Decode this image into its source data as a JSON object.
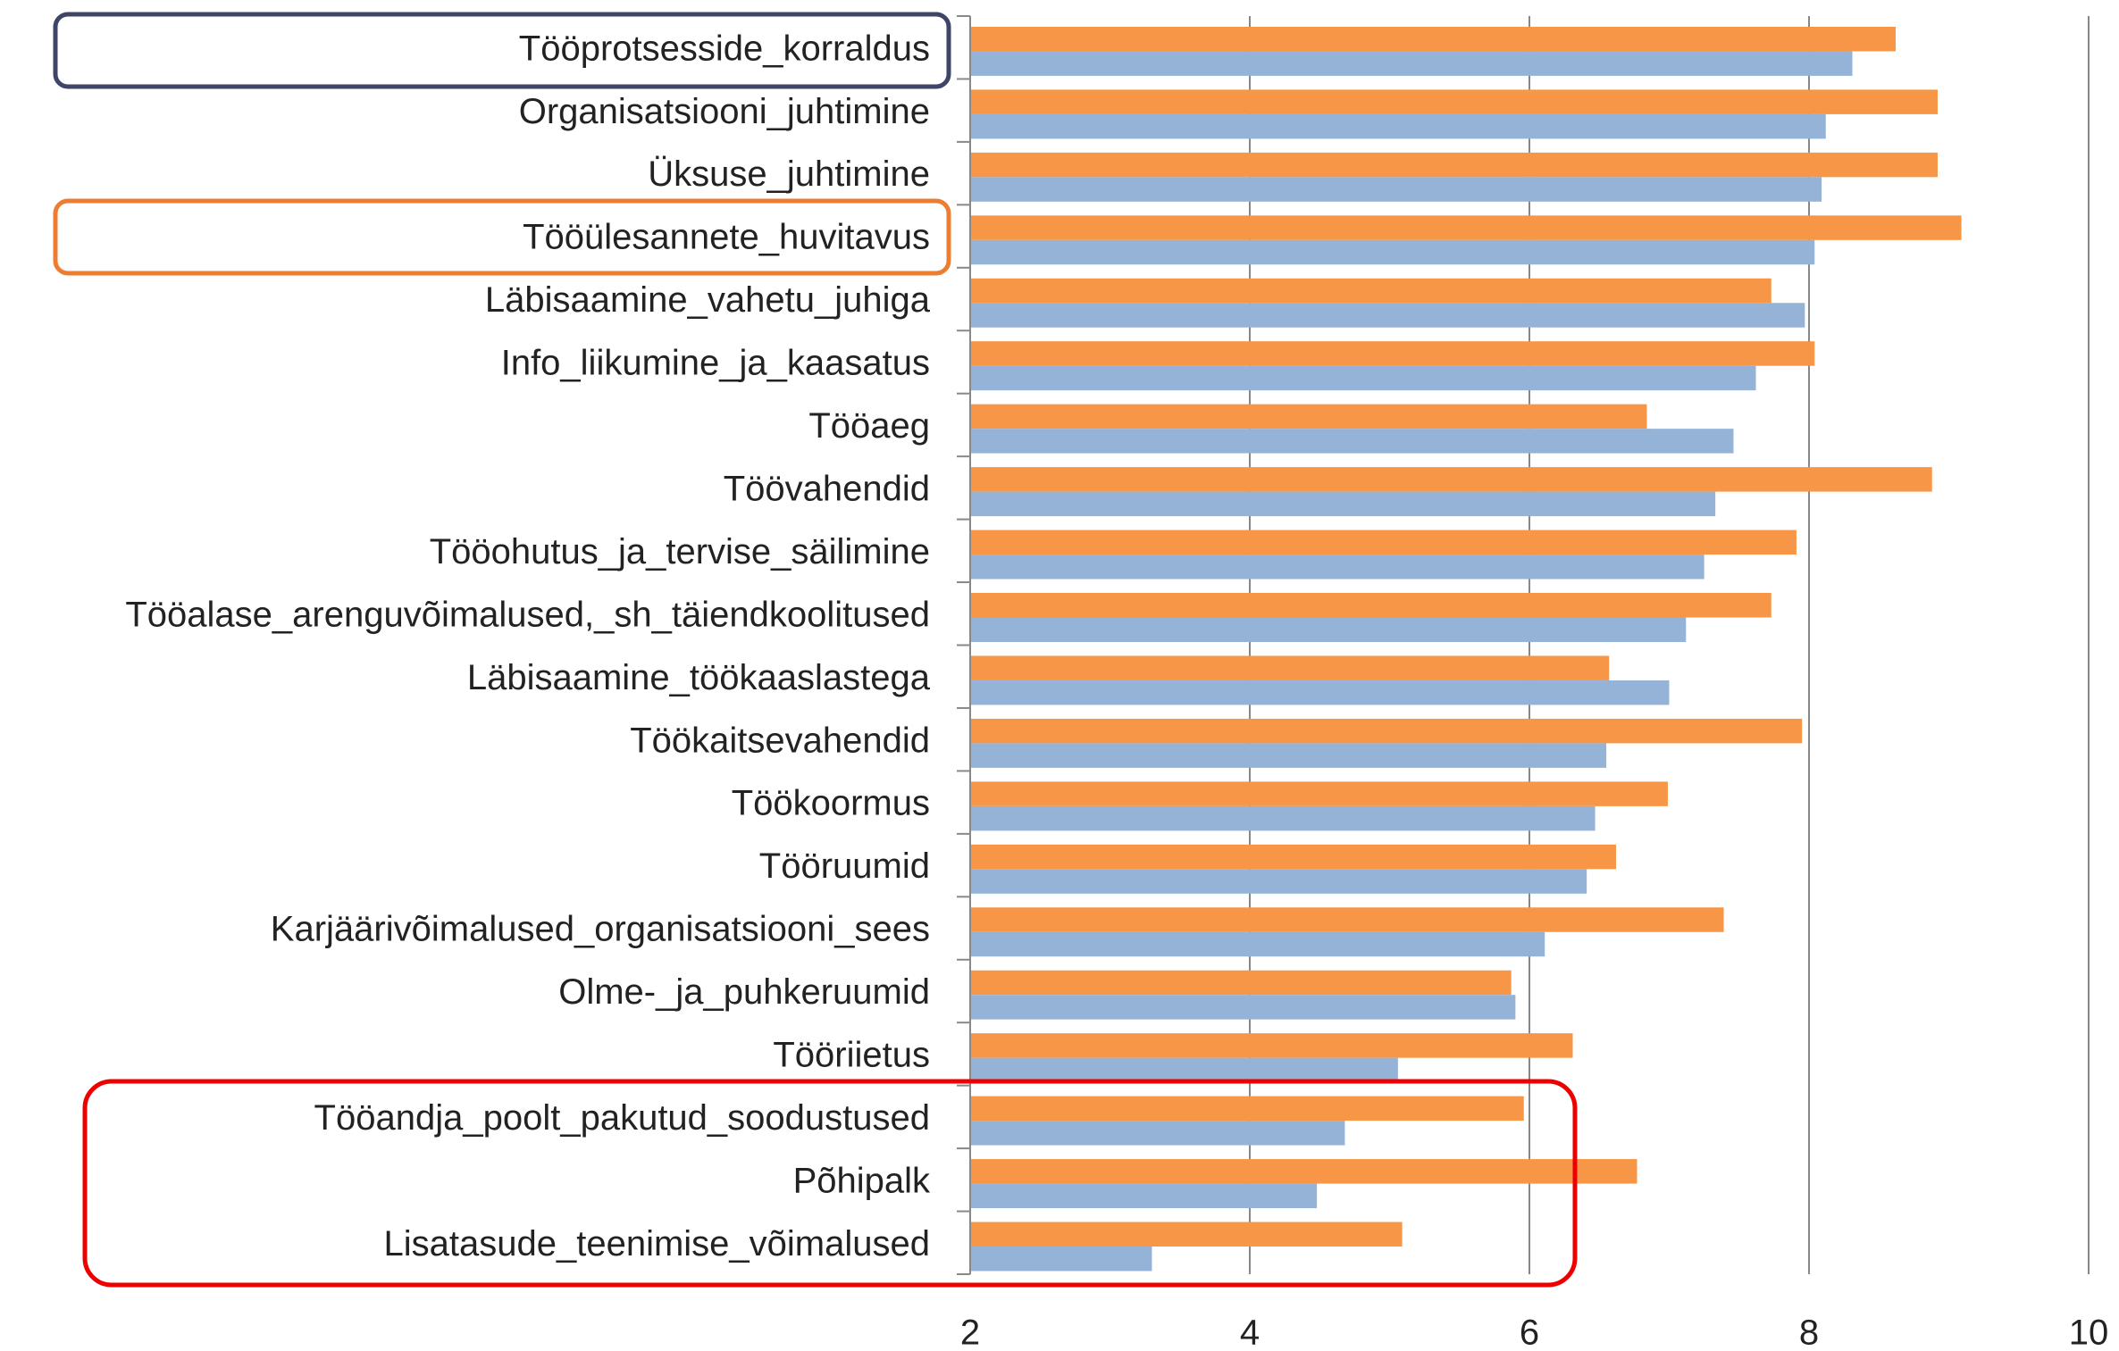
{
  "chart_data": {
    "type": "barh",
    "categories": [
      "Tööprotsesside_korraldus",
      "Organisatsiooni_juhtimine",
      "Üksuse_juhtimine",
      "Tööülesannete_huvitavus",
      "Läbisaamine_vahetu_juhiga",
      "Info_liikumine_ja_kaasatus",
      "Tööaeg",
      "Töövahendid",
      "Tööohutus_ja_tervise_säilimine",
      "Tööalase_arenguvõimalused,_sh_täiendkoolitused",
      "Läbisaamine_töökaaslastega",
      "Töökaitsevahendid",
      "Töökoormus",
      "Tööruumid",
      "Karjäärivõimalused_organisatsiooni_sees",
      "Olme-_ja_puhkeruumid",
      "Tööriietus",
      "Tööandja_poolt_pakutud_soodustused",
      "Põhipalk",
      "Lisatasude_teenimise_võimalused"
    ],
    "series": [
      {
        "color": "#f79646",
        "values": [
          8.62,
          8.92,
          8.92,
          9.09,
          7.73,
          8.04,
          6.84,
          8.88,
          7.91,
          7.73,
          6.57,
          7.95,
          6.99,
          6.62,
          7.39,
          5.87,
          6.31,
          5.96,
          6.77,
          5.09
        ]
      },
      {
        "color": "#95b3d7",
        "values": [
          8.31,
          8.12,
          8.09,
          8.04,
          7.97,
          7.62,
          7.46,
          7.33,
          7.25,
          7.12,
          7.0,
          6.55,
          6.47,
          6.41,
          6.11,
          5.9,
          5.06,
          4.68,
          4.48,
          3.3
        ]
      }
    ],
    "xlim": [
      2,
      10
    ],
    "xticks": [
      2,
      4,
      6,
      8,
      10
    ],
    "grid": true
  }
}
